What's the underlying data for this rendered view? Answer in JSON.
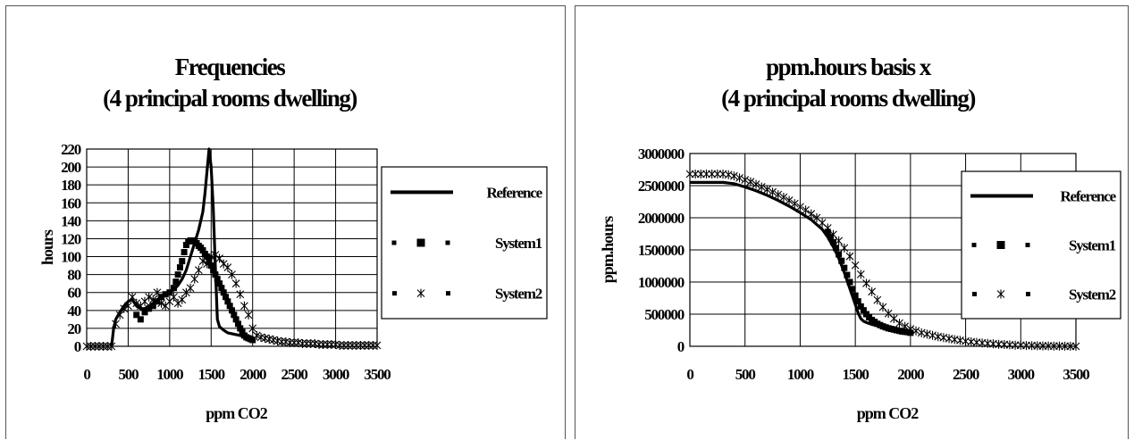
{
  "chart_data": [
    {
      "type": "line",
      "title": [
        "Frequencies",
        "(4 principal rooms dwelling)"
      ],
      "xlabel": "ppm CO2",
      "ylabel": "hours",
      "xlim": [
        0,
        3500
      ],
      "ylim": [
        0,
        220
      ],
      "xticks": [
        0,
        500,
        1000,
        1500,
        2000,
        2500,
        3000,
        3500
      ],
      "yticks": [
        0,
        20,
        40,
        60,
        80,
        100,
        120,
        140,
        160,
        180,
        200,
        220
      ],
      "grid": true,
      "legend_position": "right",
      "series": [
        {
          "name": "Reference",
          "style": "solid",
          "x": [
            300,
            325,
            350,
            400,
            450,
            500,
            550,
            600,
            650,
            700,
            750,
            800,
            850,
            900,
            950,
            1000,
            1050,
            1100,
            1150,
            1200,
            1250,
            1300,
            1350,
            1400,
            1425,
            1450,
            1475,
            1500,
            1525,
            1550,
            1575,
            1600,
            1650,
            1700,
            1750,
            1800,
            1850,
            1900,
            1950,
            2000
          ],
          "y": [
            0,
            20,
            30,
            38,
            45,
            50,
            52,
            45,
            42,
            42,
            45,
            48,
            52,
            55,
            58,
            60,
            63,
            68,
            75,
            85,
            100,
            115,
            130,
            150,
            170,
            195,
            220,
            200,
            155,
            90,
            30,
            22,
            18,
            15,
            14,
            13,
            12,
            11,
            10,
            9
          ]
        },
        {
          "name": "System1",
          "style": "square-markers",
          "x": [
            600,
            650,
            700,
            750,
            800,
            850,
            900,
            950,
            1000,
            1050,
            1075,
            1100,
            1125,
            1150,
            1175,
            1200,
            1225,
            1250,
            1275,
            1300,
            1325,
            1350,
            1375,
            1400,
            1425,
            1450,
            1475,
            1500,
            1525,
            1550,
            1575,
            1600,
            1625,
            1650,
            1675,
            1700,
            1725,
            1750,
            1775,
            1800,
            1825,
            1850,
            1875,
            1900,
            1925,
            1950,
            1975,
            2000
          ],
          "y": [
            35,
            30,
            38,
            42,
            45,
            50,
            55,
            58,
            60,
            65,
            72,
            80,
            88,
            95,
            105,
            113,
            117,
            118,
            118,
            117,
            115,
            112,
            110,
            107,
            103,
            100,
            95,
            90,
            85,
            80,
            75,
            70,
            65,
            60,
            55,
            50,
            45,
            40,
            35,
            30,
            25,
            20,
            16,
            12,
            10,
            9,
            8,
            7
          ]
        },
        {
          "name": "System2",
          "style": "star-markers",
          "x": [
            0,
            50,
            100,
            150,
            200,
            250,
            300,
            350,
            400,
            450,
            500,
            550,
            600,
            650,
            700,
            750,
            800,
            850,
            900,
            950,
            1000,
            1050,
            1100,
            1150,
            1200,
            1250,
            1300,
            1350,
            1400,
            1450,
            1500,
            1550,
            1600,
            1650,
            1700,
            1750,
            1800,
            1850,
            1900,
            1950,
            2000,
            2050,
            2100,
            2150,
            2200,
            2250,
            2300,
            2350,
            2400,
            2450,
            2500,
            2550,
            2600,
            2650,
            2700,
            2750,
            2800,
            2850,
            2900,
            2950,
            3000,
            3050,
            3100,
            3150,
            3200,
            3250,
            3300,
            3350,
            3400,
            3450,
            3500
          ],
          "y": [
            0,
            0,
            0,
            0,
            0,
            0,
            0,
            25,
            35,
            42,
            45,
            55,
            48,
            45,
            50,
            55,
            52,
            60,
            48,
            45,
            50,
            55,
            48,
            52,
            60,
            65,
            75,
            85,
            95,
            92,
            100,
            102,
            98,
            92,
            88,
            80,
            70,
            58,
            45,
            35,
            20,
            12,
            10,
            9,
            8,
            7,
            6,
            5,
            5,
            4,
            4,
            4,
            3,
            3,
            3,
            3,
            2,
            2,
            2,
            2,
            2,
            1,
            1,
            1,
            1,
            1,
            1,
            1,
            1,
            1,
            1
          ]
        }
      ]
    },
    {
      "type": "line",
      "title": [
        "ppm.hours basis x",
        "(4 principal rooms dwelling)"
      ],
      "xlabel": "ppm CO2",
      "ylabel": "ppm.hours",
      "xlim": [
        0,
        3500
      ],
      "ylim": [
        0,
        3000000
      ],
      "xticks": [
        0,
        500,
        1000,
        1500,
        2000,
        2500,
        3000,
        3500
      ],
      "yticks": [
        0,
        500000,
        1000000,
        1500000,
        2000000,
        2500000,
        3000000
      ],
      "grid": true,
      "legend_position": "right",
      "series": [
        {
          "name": "Reference",
          "style": "solid",
          "x": [
            0,
            100,
            200,
            300,
            400,
            500,
            600,
            700,
            800,
            900,
            1000,
            1100,
            1200,
            1250,
            1300,
            1350,
            1400,
            1450,
            1500,
            1525,
            1550,
            1575,
            1600,
            1650,
            1700,
            1750,
            1800,
            1850,
            1900,
            1950,
            2000
          ],
          "y": [
            2550000,
            2550000,
            2550000,
            2550000,
            2530000,
            2480000,
            2420000,
            2350000,
            2270000,
            2180000,
            2080000,
            1970000,
            1820000,
            1700000,
            1550000,
            1370000,
            1150000,
            900000,
            650000,
            520000,
            430000,
            390000,
            370000,
            340000,
            320000,
            300000,
            285000,
            270000,
            260000,
            250000,
            240000
          ]
        },
        {
          "name": "System1",
          "style": "square-markers",
          "x": [
            1250,
            1275,
            1300,
            1325,
            1350,
            1375,
            1400,
            1425,
            1450,
            1475,
            1500,
            1525,
            1550,
            1575,
            1600,
            1625,
            1650,
            1675,
            1700,
            1725,
            1750,
            1775,
            1800,
            1825,
            1850,
            1875,
            1900,
            1925,
            1950,
            1975,
            2000
          ],
          "y": [
            1780000,
            1700000,
            1620000,
            1530000,
            1430000,
            1330000,
            1220000,
            1110000,
            1000000,
            890000,
            790000,
            700000,
            620000,
            560000,
            500000,
            450000,
            410000,
            380000,
            350000,
            330000,
            310000,
            295000,
            280000,
            270000,
            260000,
            250000,
            240000,
            230000,
            225000,
            220000,
            210000
          ]
        },
        {
          "name": "System2",
          "style": "star-markers",
          "x": [
            0,
            50,
            100,
            150,
            200,
            250,
            300,
            350,
            400,
            450,
            500,
            550,
            600,
            650,
            700,
            750,
            800,
            850,
            900,
            950,
            1000,
            1050,
            1100,
            1150,
            1200,
            1250,
            1300,
            1350,
            1400,
            1450,
            1500,
            1550,
            1600,
            1650,
            1700,
            1750,
            1800,
            1850,
            1900,
            1950,
            2000,
            2050,
            2100,
            2150,
            2200,
            2250,
            2300,
            2350,
            2400,
            2450,
            2500,
            2550,
            2600,
            2650,
            2700,
            2750,
            2800,
            2850,
            2900,
            2950,
            3000,
            3050,
            3100,
            3150,
            3200,
            3250,
            3300,
            3350,
            3400,
            3450,
            3500
          ],
          "y": [
            2680000,
            2680000,
            2680000,
            2680000,
            2680000,
            2680000,
            2680000,
            2670000,
            2650000,
            2620000,
            2590000,
            2560000,
            2520000,
            2480000,
            2440000,
            2400000,
            2360000,
            2320000,
            2270000,
            2220000,
            2170000,
            2120000,
            2060000,
            2000000,
            1920000,
            1840000,
            1740000,
            1640000,
            1530000,
            1400000,
            1260000,
            1120000,
            980000,
            850000,
            720000,
            610000,
            510000,
            430000,
            360000,
            310000,
            270000,
            240000,
            210000,
            190000,
            170000,
            150000,
            135000,
            120000,
            105000,
            92000,
            80000,
            70000,
            60000,
            52000,
            45000,
            38000,
            32000,
            27000,
            22000,
            18000,
            15000,
            12000,
            10000,
            8000,
            6000,
            5000,
            4000,
            3000,
            2000,
            1000,
            500
          ]
        }
      ]
    }
  ]
}
